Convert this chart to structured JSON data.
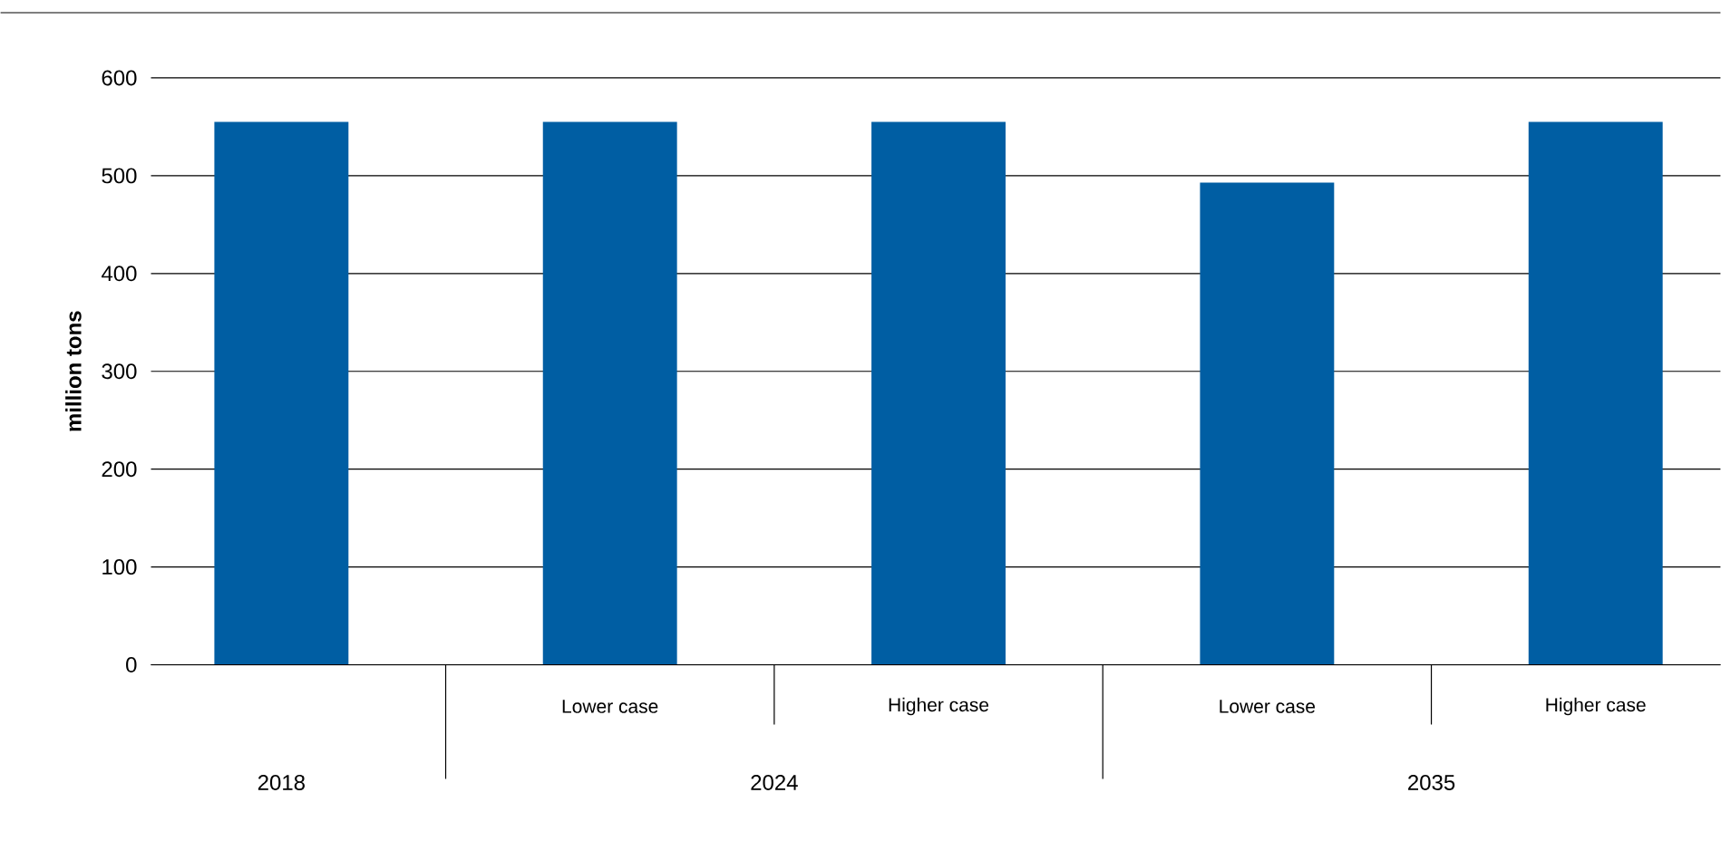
{
  "chart_data": {
    "type": "bar",
    "ylabel": "million tons",
    "categories": [
      null,
      "Lower case",
      "Higher case",
      "Lower case",
      "Higher case"
    ],
    "values": [
      555,
      555,
      555,
      493,
      555
    ],
    "color": "#005ea3",
    "ylim": [
      0,
      600
    ],
    "yticks": [
      0,
      100,
      200,
      300,
      400,
      500,
      600
    ],
    "grid": "y",
    "annotations": [
      "2018",
      "2024",
      "2035"
    ]
  }
}
